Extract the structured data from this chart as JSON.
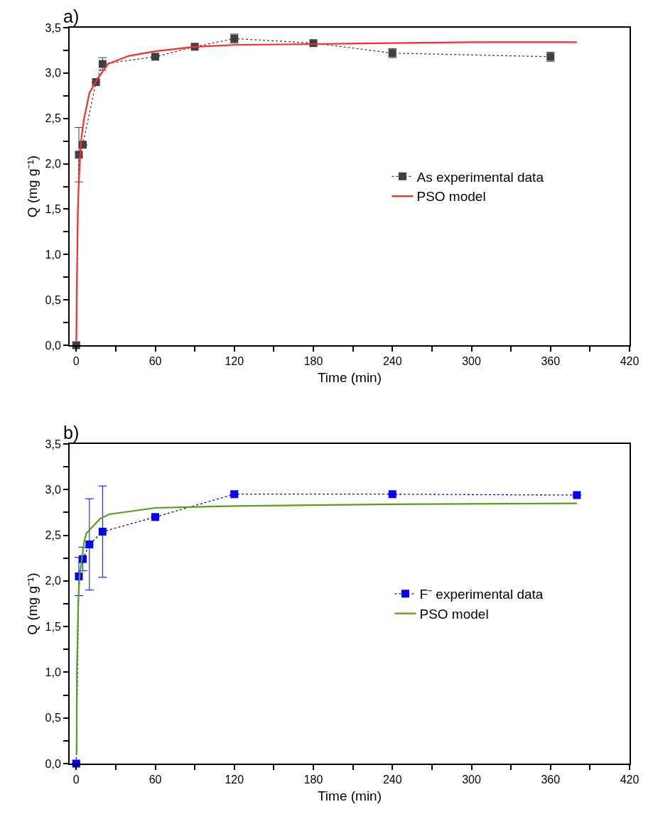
{
  "chart_data": [
    {
      "type": "line",
      "title": "a)",
      "xlabel": "Time (min)",
      "ylabel": "Q (mg g⁻¹)",
      "xlim": [
        -5,
        420
      ],
      "ylim": [
        0,
        3.5
      ],
      "xticks": [
        0,
        {
          "value": 30,
          "label": null
        },
        60,
        {
          "value": 90,
          "label": null
        },
        120,
        {
          "value": 150,
          "label": null
        },
        180,
        {
          "value": 210,
          "label": null
        },
        240,
        {
          "value": 270,
          "label": null
        },
        300,
        {
          "value": 330,
          "label": null
        },
        360,
        {
          "value": 390,
          "label": null
        },
        420
      ],
      "yticks": [
        {
          "value": 0,
          "label": "0,0"
        },
        {
          "value": 0.25,
          "label": null
        },
        {
          "value": 0.5,
          "label": "0,5"
        },
        {
          "value": 0.75,
          "label": null
        },
        {
          "value": 1,
          "label": "1,0"
        },
        {
          "value": 1.25,
          "label": null
        },
        {
          "value": 1.5,
          "label": "1,5"
        },
        {
          "value": 1.75,
          "label": null
        },
        {
          "value": 2,
          "label": "2,0"
        },
        {
          "value": 2.25,
          "label": null
        },
        {
          "value": 2.5,
          "label": "2,5"
        },
        {
          "value": 2.75,
          "label": null
        },
        {
          "value": 3,
          "label": "3,0"
        },
        {
          "value": 3.25,
          "label": null
        },
        {
          "value": 3.5,
          "label": "3,5"
        }
      ],
      "legend": "right",
      "series": [
        {
          "name": "As experimental data",
          "type": "line",
          "color": "#404040",
          "marker": "square",
          "line_style": "dotted",
          "x": [
            0,
            2,
            5,
            15,
            20,
            60,
            90,
            120,
            180,
            240,
            360
          ],
          "values": [
            0,
            2.1,
            2.21,
            2.9,
            3.1,
            3.18,
            3.29,
            3.38,
            3.33,
            3.22,
            3.18
          ],
          "errors": [
            null,
            0.3,
            null,
            null,
            0.07,
            null,
            null,
            0.05,
            null,
            0.05,
            0.05
          ]
        },
        {
          "name": "PSO model",
          "color": "#ff2a2a",
          "line_style": "solid",
          "marker": "none",
          "x": [
            0.1,
            0.5,
            1.2,
            2,
            2.7,
            4,
            6,
            10,
            15,
            24,
            40,
            60,
            90,
            120,
            180,
            240,
            300,
            380
          ],
          "values": [
            0.05,
            0.7,
            1.46,
            1.8,
            2.0,
            2.3,
            2.5,
            2.78,
            2.91,
            3.1,
            3.19,
            3.24,
            3.29,
            3.31,
            3.32,
            3.33,
            3.34,
            3.34
          ]
        }
      ]
    },
    {
      "type": "line",
      "title": "b)",
      "xlabel": "Time (min)",
      "ylabel": "Q (mg g⁻¹)",
      "xlim": [
        -5,
        420
      ],
      "ylim": [
        0,
        3.5
      ],
      "xticks": [
        0,
        {
          "value": 30,
          "label": null
        },
        60,
        {
          "value": 90,
          "label": null
        },
        120,
        {
          "value": 150,
          "label": null
        },
        180,
        {
          "value": 210,
          "label": null
        },
        240,
        {
          "value": 270,
          "label": null
        },
        300,
        {
          "value": 330,
          "label": null
        },
        360,
        {
          "value": 390,
          "label": null
        },
        420
      ],
      "yticks": [
        {
          "value": 0,
          "label": "0,0"
        },
        {
          "value": 0.25,
          "label": null
        },
        {
          "value": 0.5,
          "label": "0,5"
        },
        {
          "value": 0.75,
          "label": null
        },
        {
          "value": 1,
          "label": "1,0"
        },
        {
          "value": 1.25,
          "label": null
        },
        {
          "value": 1.5,
          "label": "1,5"
        },
        {
          "value": 1.75,
          "label": null
        },
        {
          "value": 2,
          "label": "2,0"
        },
        {
          "value": 2.25,
          "label": null
        },
        {
          "value": 2.5,
          "label": "2,5"
        },
        {
          "value": 2.75,
          "label": null
        },
        {
          "value": 3,
          "label": "3,0"
        },
        {
          "value": 3.25,
          "label": null
        },
        {
          "value": 3.5,
          "label": "3,5"
        }
      ],
      "legend": "right",
      "series": [
        {
          "name": "F⁻ experimental data",
          "type": "line",
          "color": "#0000ff",
          "marker": "square",
          "line_style": "dotted",
          "x": [
            0,
            2,
            5,
            10,
            20,
            60,
            120,
            240,
            380
          ],
          "values": [
            0,
            2.05,
            2.24,
            2.4,
            2.54,
            2.7,
            2.95,
            2.95,
            2.94
          ],
          "errors": [
            null,
            0.21,
            0.13,
            0.5,
            0.5,
            null,
            null,
            null,
            null
          ]
        },
        {
          "name": "PSO model",
          "color": "#5a9e1a",
          "line_style": "solid",
          "marker": "none",
          "x": [
            0.3,
            0.5,
            1.6,
            2.5,
            5.9,
            7.6,
            18,
            25,
            60,
            120,
            240,
            380
          ],
          "values": [
            0.1,
            1.0,
            1.79,
            2.05,
            2.42,
            2.52,
            2.68,
            2.73,
            2.8,
            2.82,
            2.84,
            2.85
          ]
        }
      ]
    }
  ]
}
